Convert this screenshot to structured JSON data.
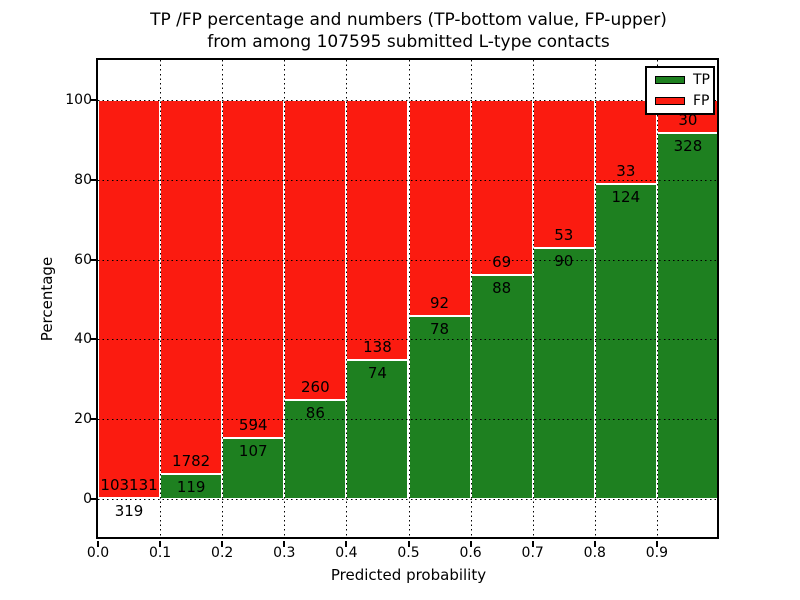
{
  "title": {
    "line1": "TP /FP percentage and numbers (TP-bottom value, FP-upper)",
    "line2": "from among 107595 submitted L-type contacts"
  },
  "legend": {
    "items": [
      {
        "label": "TP",
        "color": "#1e8020"
      },
      {
        "label": "FP",
        "color": "#fb1b10"
      }
    ]
  },
  "chart_data": {
    "type": "bar",
    "subtype": "stacked-percentage",
    "title": "TP /FP percentage and numbers (TP-bottom value, FP-upper) from among 107595 submitted L-type contacts",
    "xlabel": "Predicted probability",
    "ylabel": "Percentage",
    "xlim": [
      0.0,
      1.0
    ],
    "ylim": [
      -10,
      110
    ],
    "bin_width": 0.1,
    "grid": "dotted",
    "legend_position": "upper right",
    "total_contacts": 107595,
    "x_tick_labels": [
      "0.0",
      "0.1",
      "0.2",
      "0.3",
      "0.4",
      "0.5",
      "0.6",
      "0.7",
      "0.8",
      "0.9"
    ],
    "y_tick_values": [
      0,
      20,
      40,
      60,
      80,
      100
    ],
    "y_tick_labels": [
      "0",
      "20",
      "40",
      "60",
      "80",
      "100"
    ],
    "categories": [
      "0.0-0.1",
      "0.1-0.2",
      "0.2-0.3",
      "0.3-0.4",
      "0.4-0.5",
      "0.5-0.6",
      "0.6-0.7",
      "0.7-0.8",
      "0.8-0.9",
      "0.9-1.0"
    ],
    "series": [
      {
        "name": "TP",
        "color": "#1e8020",
        "values": [
          319,
          119,
          107,
          86,
          74,
          78,
          88,
          90,
          124,
          328
        ]
      },
      {
        "name": "FP",
        "color": "#fb1b10",
        "values": [
          103131,
          1782,
          594,
          260,
          138,
          92,
          69,
          53,
          33,
          30
        ]
      }
    ],
    "tp_percent": [
      0.31,
      6.26,
      15.26,
      24.86,
      34.91,
      45.88,
      56.05,
      62.94,
      78.98,
      91.62
    ],
    "bar_edge_color": "#ffffff"
  }
}
